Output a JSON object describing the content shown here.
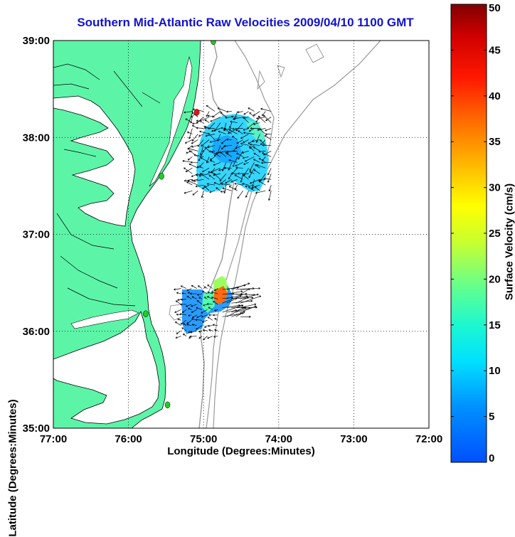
{
  "chart_data": {
    "type": "map",
    "title": "Southern Mid-Atlantic Raw Velocities 2009/04/10 1100 GMT",
    "xlabel": "Longitude (Degrees:Minutes)",
    "ylabel": "Latitude (Degrees:Minutes)",
    "x_range": [
      -77,
      -72
    ],
    "y_range": [
      35,
      39
    ],
    "x_ticks": [
      {
        "value": -77,
        "label": "77:00"
      },
      {
        "value": -76,
        "label": "76:00"
      },
      {
        "value": -75,
        "label": "75:00"
      },
      {
        "value": -74,
        "label": "74:00"
      },
      {
        "value": -73,
        "label": "73:00"
      },
      {
        "value": -72,
        "label": "72:00"
      }
    ],
    "y_ticks": [
      {
        "value": 35,
        "label": "35:00"
      },
      {
        "value": 36,
        "label": "36:00"
      },
      {
        "value": 37,
        "label": "37:00"
      },
      {
        "value": 38,
        "label": "38:00"
      },
      {
        "value": 39,
        "label": "39:00"
      }
    ],
    "grid": "dotted",
    "colorbar": {
      "label": "Surface Velocity (cm/s)",
      "range": [
        0,
        50
      ],
      "ticks": [
        0,
        5,
        10,
        15,
        20,
        25,
        30,
        35,
        40,
        45,
        50
      ],
      "colormap": "jet"
    },
    "land_color": "#5cf5a8",
    "sites": [
      {
        "lon": -74.87,
        "lat": 38.99,
        "color": "#22cc22"
      },
      {
        "lon": -75.09,
        "lat": 38.26,
        "color": "#ee1111"
      },
      {
        "lon": -75.56,
        "lat": 37.6,
        "color": "#22cc22"
      },
      {
        "lon": -75.77,
        "lat": 36.18,
        "color": "#22cc22"
      },
      {
        "lon": -75.48,
        "lat": 35.24,
        "color": "#22cc22"
      }
    ],
    "regions": [
      {
        "name": "north",
        "lon_range": [
          -75.15,
          -74.05
        ],
        "lat_range": [
          37.45,
          38.3
        ],
        "speed_range": [
          5,
          16
        ]
      },
      {
        "name": "south",
        "lon_range": [
          -75.3,
          -74.4
        ],
        "lat_range": [
          35.95,
          36.45
        ],
        "speed_range": [
          5,
          36
        ]
      }
    ]
  }
}
